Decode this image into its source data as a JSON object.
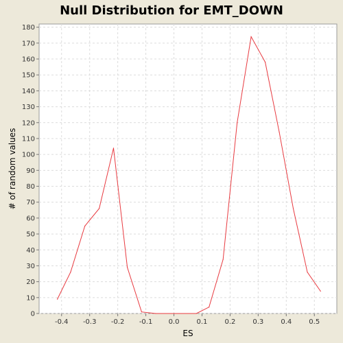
{
  "chart_data": {
    "type": "line",
    "title": "Null Distribution for EMT_DOWN",
    "xlabel": "ES",
    "ylabel": "# of random values",
    "xlim": [
      -0.48,
      0.58
    ],
    "ylim": [
      0,
      182
    ],
    "x_ticks": [
      "-0.4",
      "-0.3",
      "-0.2",
      "-0.1",
      "0.0",
      "0.1",
      "0.2",
      "0.3",
      "0.4",
      "0.5"
    ],
    "y_ticks": [
      "0",
      "10",
      "20",
      "30",
      "40",
      "50",
      "60",
      "70",
      "80",
      "90",
      "100",
      "110",
      "120",
      "130",
      "140",
      "150",
      "160",
      "170",
      "180"
    ],
    "grid": true,
    "series": [
      {
        "color": "#e8393f",
        "x": [
          -0.415,
          -0.368,
          -0.317,
          -0.266,
          -0.215,
          -0.166,
          -0.115,
          -0.065,
          0.08,
          0.125,
          0.175,
          0.225,
          0.275,
          0.325,
          0.375,
          0.425,
          0.475,
          0.522
        ],
        "y": [
          9,
          26,
          55,
          66,
          104,
          29,
          1,
          0,
          0,
          4,
          34,
          120,
          174,
          158,
          114,
          66,
          26,
          14
        ]
      }
    ]
  }
}
